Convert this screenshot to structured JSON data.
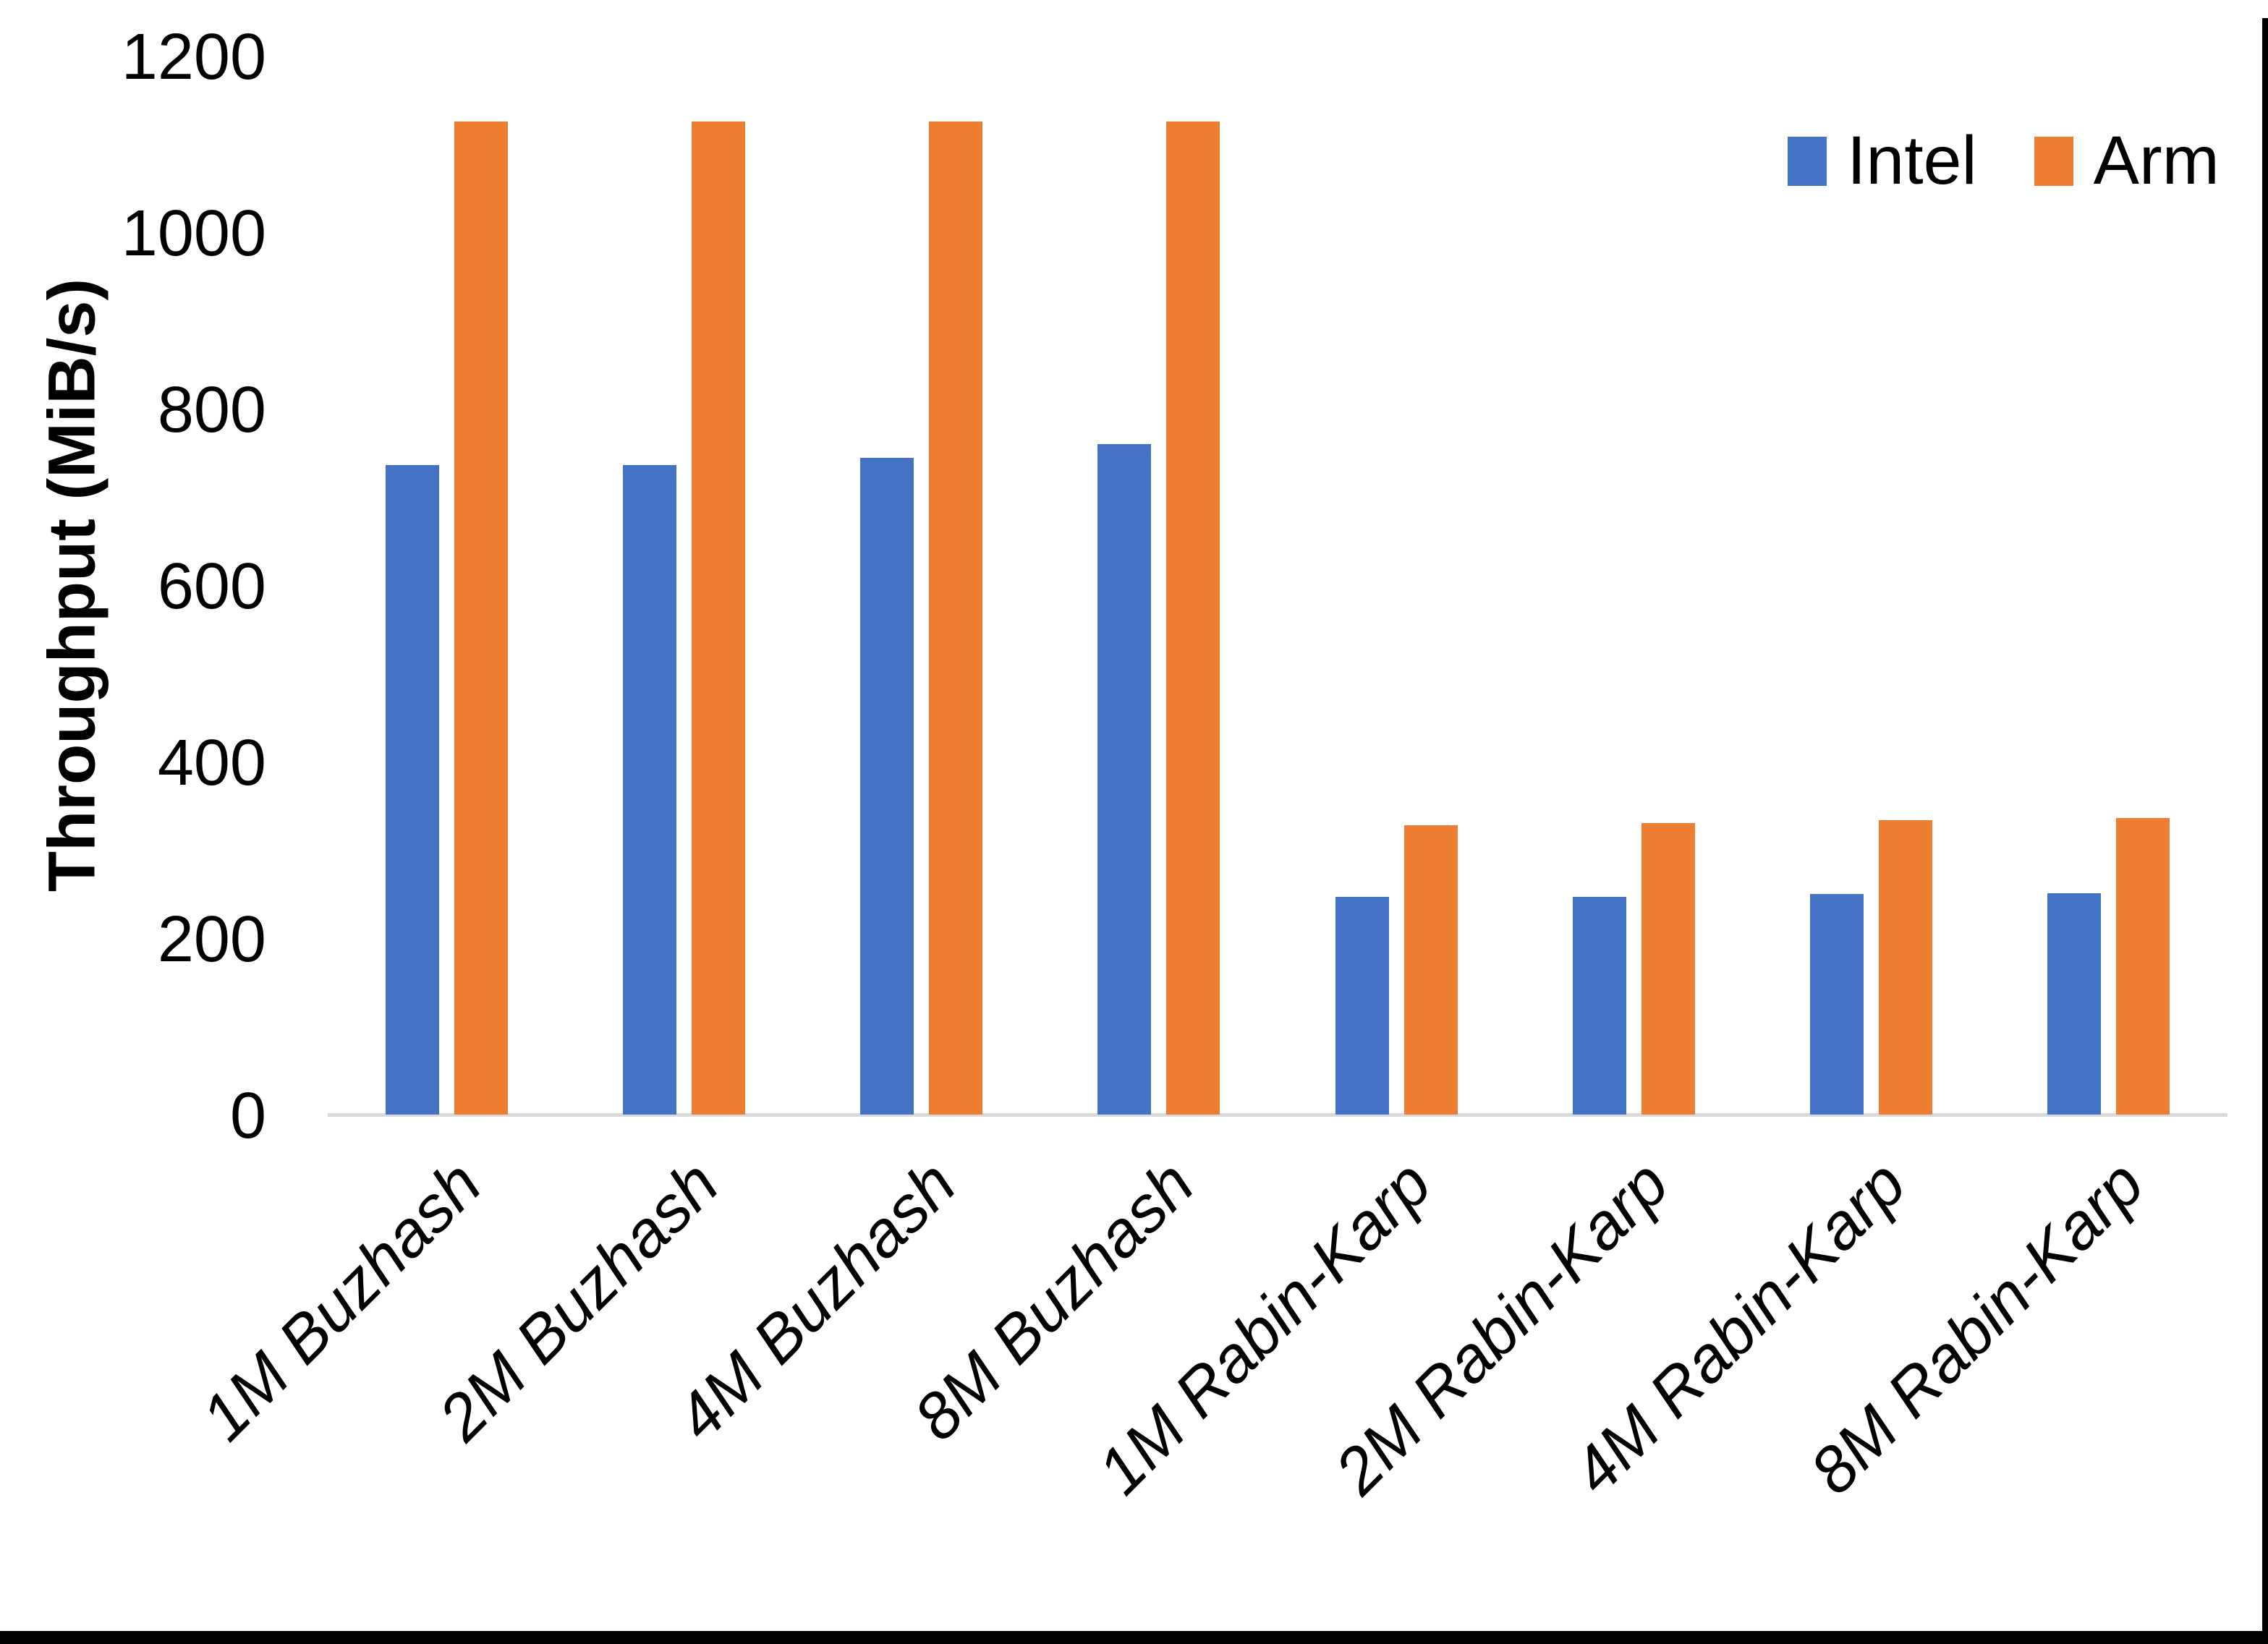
{
  "chart_data": {
    "type": "bar",
    "title": "",
    "xlabel": "",
    "ylabel": "Throughput (MiB/s)",
    "categories": [
      "1M Buzhash",
      "2M Buzhash",
      "4M Buzhash",
      "8M Buzhash",
      "1M Rabin-Karp",
      "2M Rabin-Karp",
      "4M Rabin-Karp",
      "8M Rabin-Karp"
    ],
    "series": [
      {
        "name": "Intel",
        "color": "#4472C4",
        "values": [
          736,
          736,
          744,
          760,
          247,
          247,
          250,
          251
        ]
      },
      {
        "name": "Arm",
        "color": "#ED7D31",
        "values": [
          1125,
          1125,
          1125,
          1125,
          328,
          330,
          334,
          336
        ]
      }
    ],
    "ylim": [
      0,
      1200
    ],
    "yticks": [
      0,
      200,
      400,
      600,
      800,
      1000,
      1200
    ],
    "grid": false,
    "legend_position": "top-right",
    "axis_line_color": "#D9D9D9",
    "text_color": "#000000"
  }
}
